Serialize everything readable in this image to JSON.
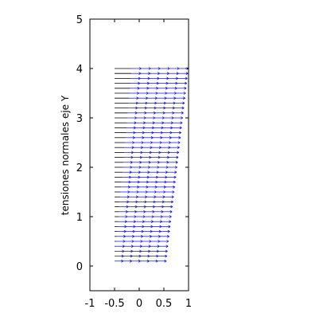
{
  "chart_data": {
    "type": "quiver",
    "title": "",
    "xlabel": "",
    "ylabel": "tensiones normales eje Y",
    "xlim": [
      -1,
      1
    ],
    "ylim": [
      -0.5,
      5
    ],
    "xticks": [
      "-1",
      "-0.5",
      "0",
      "0.5",
      "1"
    ],
    "yticks": [
      "0",
      "1",
      "2",
      "3",
      "4",
      "5"
    ],
    "grid": false,
    "arrow_color": "#0000ff",
    "wall_color": "#000000",
    "rows": {
      "y_start": 0.1,
      "y_end": 4.0,
      "count": 40,
      "x_start_left": -0.5,
      "x_end_left": -0.15,
      "x_start_right": 0.55,
      "x_end_right": 1.0
    },
    "n_arrows_per_row": 6
  }
}
